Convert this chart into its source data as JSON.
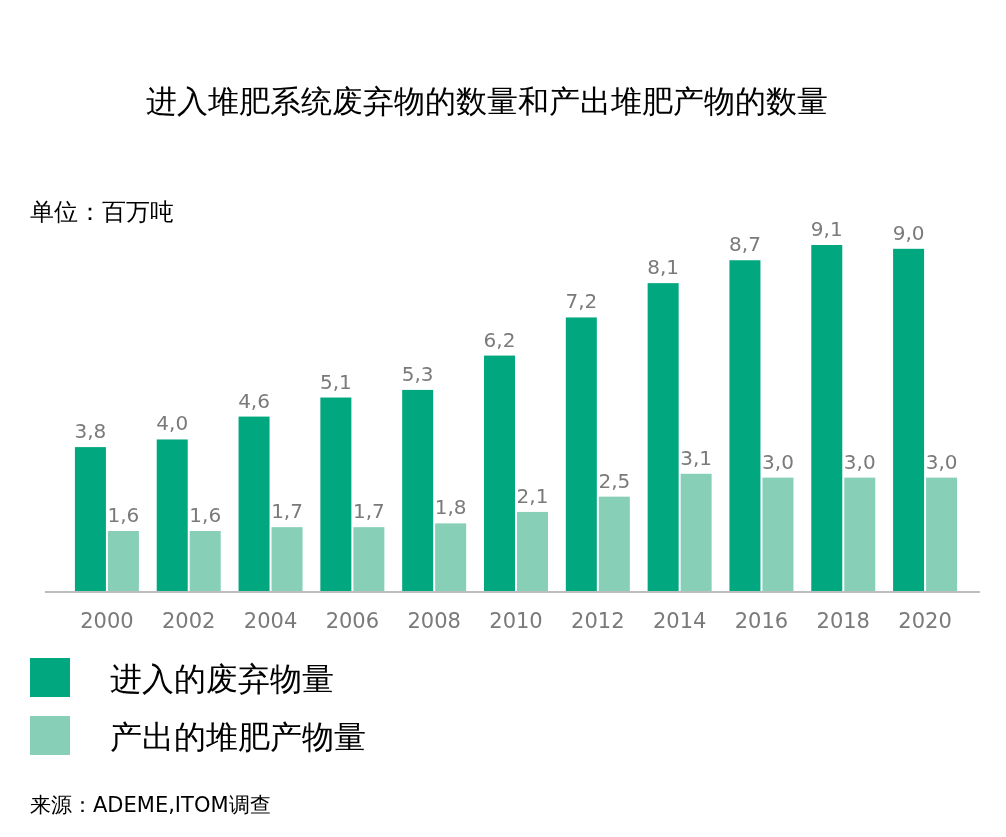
{
  "chart_data": {
    "type": "bar",
    "title": "进入堆肥系统废弃物的数量和产出堆肥产物的数量",
    "subtitle": "单位：百万吨",
    "categories": [
      "2000",
      "2002",
      "2004",
      "2006",
      "2008",
      "2010",
      "2012",
      "2014",
      "2016",
      "2018",
      "2020"
    ],
    "series": [
      {
        "name": "进入的废弃物量",
        "color": "#00a77f",
        "values": [
          3.8,
          4.0,
          4.6,
          5.1,
          5.3,
          6.2,
          7.2,
          8.1,
          8.7,
          9.1,
          9.0
        ],
        "value_labels": [
          "3,8",
          "4,0",
          "4,6",
          "5,1",
          "5,3",
          "6,2",
          "7,2",
          "8,1",
          "8,7",
          "9,1",
          "9,0"
        ]
      },
      {
        "name": "产出的堆肥产物量",
        "color": "#88cfb8",
        "values": [
          1.6,
          1.6,
          1.7,
          1.7,
          1.8,
          2.1,
          2.5,
          3.1,
          3.0,
          3.0,
          3.0
        ],
        "value_labels": [
          "1,6",
          "1,6",
          "1,7",
          "1,7",
          "1,8",
          "2,1",
          "2,5",
          "3,1",
          "3,0",
          "3,0",
          "3,0"
        ]
      }
    ],
    "legend": "bottom",
    "annotations": [
      "来源：ADEME,ITOM调查"
    ]
  }
}
